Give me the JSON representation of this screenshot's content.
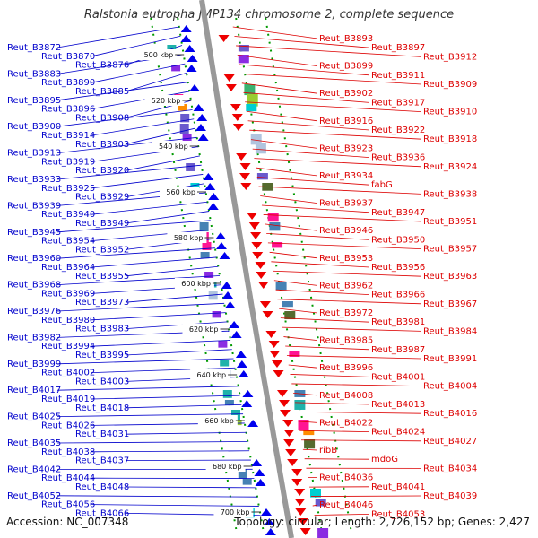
{
  "title": "Ralstonia eutropha JMP134 chromosome 2, complete sequence",
  "footer": {
    "accession": "Accession: NC_007348",
    "summary": "Topology: circular; Length: 2,726,152 bp; Genes: 2,427"
  },
  "colors": {
    "left_labels": "#0000cc",
    "right_labels": "#dd0000",
    "backbone": "#999999",
    "ticks": "#009900",
    "plus_arrows": "#0000ee",
    "minus_arrows": "#ee0000"
  },
  "scale_ticks": [
    "500 kbp",
    "520 kbp",
    "540 kbp",
    "560 kbp",
    "580 kbp",
    "600 kbp",
    "620 kbp",
    "640 kbp",
    "660 kbp",
    "680 kbp",
    "700 kbp"
  ],
  "left_genes": [
    "Reut_B3872",
    "Reut_B3870",
    "Reut_B3876",
    "Reut_B3883",
    "Reut_B3890",
    "Reut_B3885",
    "Reut_B3895",
    "Reut_B3896",
    "Reut_B3908",
    "Reut_B3900",
    "Reut_B3914",
    "Reut_B3903",
    "Reut_B3913",
    "Reut_B3919",
    "Reut_B3920",
    "Reut_B3933",
    "Reut_B3925",
    "Reut_B3929",
    "Reut_B3939",
    "Reut_B3940",
    "Reut_B3949",
    "Reut_B3945",
    "Reut_B3954",
    "Reut_B3952",
    "Reut_B3960",
    "Reut_B3964",
    "Reut_B3955",
    "Reut_B3968",
    "Reut_B3969",
    "Reut_B3973",
    "Reut_B3976",
    "Reut_B3980",
    "Reut_B3983",
    "Reut_B3982",
    "Reut_B3994",
    "Reut_B3995",
    "Reut_B3999",
    "Reut_B4002",
    "Reut_B4003",
    "Reut_B4017",
    "Reut_B4019",
    "Reut_B4018",
    "Reut_B4025",
    "Reut_B4026",
    "Reut_B4031",
    "Reut_B4035",
    "Reut_B4038",
    "Reut_B4037",
    "Reut_B4042",
    "Reut_B4044",
    "Reut_B4048",
    "Reut_B4052",
    "Reut_B4056",
    "Reut_B4066"
  ],
  "right_genes": [
    "Reut_B3893",
    "Reut_B3897",
    "Reut_B3912",
    "Reut_B3899",
    "Reut_B3911",
    "Reut_B3909",
    "Reut_B3902",
    "Reut_B3917",
    "Reut_B3910",
    "Reut_B3916",
    "Reut_B3922",
    "Reut_B3918",
    "Reut_B3923",
    "Reut_B3936",
    "Reut_B3924",
    "Reut_B3934",
    "fabG",
    "Reut_B3938",
    "Reut_B3937",
    "Reut_B3947",
    "Reut_B3951",
    "Reut_B3946",
    "Reut_B3950",
    "Reut_B3957",
    "Reut_B3953",
    "Reut_B3956",
    "Reut_B3963",
    "Reut_B3962",
    "Reut_B3966",
    "Reut_B3967",
    "Reut_B3972",
    "Reut_B3981",
    "Reut_B3984",
    "Reut_B3985",
    "Reut_B3987",
    "Reut_B3991",
    "Reut_B3996",
    "Reut_B4001",
    "Reut_B4004",
    "Reut_B4008",
    "Reut_B4013",
    "Reut_B4016",
    "Reut_B4022",
    "Reut_B4024",
    "Reut_B4027",
    "ribB",
    "mdoG",
    "Reut_B4034",
    "Reut_B4036",
    "Reut_B4041",
    "Reut_B4039",
    "Reut_B4046",
    "Reut_B4053"
  ]
}
